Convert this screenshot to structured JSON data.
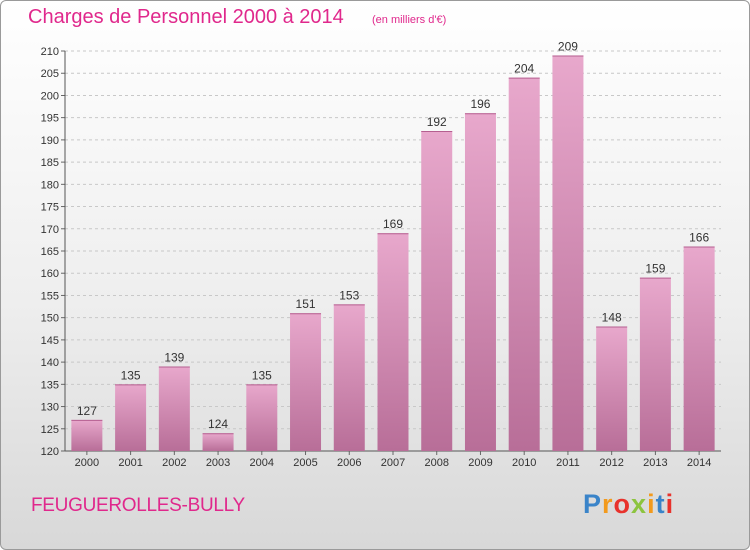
{
  "chart_data": {
    "type": "bar",
    "title": "Charges de Personnel 2000 à 2014",
    "subtitle": "(en milliers d'€)",
    "categories": [
      "2000",
      "2001",
      "2002",
      "2003",
      "2004",
      "2005",
      "2006",
      "2007",
      "2008",
      "2009",
      "2010",
      "2011",
      "2012",
      "2013",
      "2014"
    ],
    "values": [
      127,
      135,
      139,
      124,
      135,
      151,
      153,
      169,
      192,
      196,
      204,
      209,
      148,
      159,
      166
    ],
    "ylim": [
      120,
      210
    ],
    "yticks": [
      120,
      125,
      130,
      135,
      140,
      145,
      150,
      155,
      160,
      165,
      170,
      175,
      180,
      185,
      190,
      195,
      200,
      205,
      210
    ],
    "grid": true,
    "colors": {
      "bar": "#e0a2c8",
      "bar_dark": "#c57aa6",
      "text": "#e0288c"
    }
  },
  "footer": {
    "town": "FEUGUEROLLES-BULLY",
    "logo_letters": [
      "P",
      "r",
      "o",
      "x",
      "i",
      "t",
      "i"
    ],
    "logo_colors": [
      "#3a84c9",
      "#f29a1d",
      "#e8322c",
      "#8cc43f",
      "#f29a1d",
      "#3a84c9",
      "#e8322c"
    ]
  }
}
